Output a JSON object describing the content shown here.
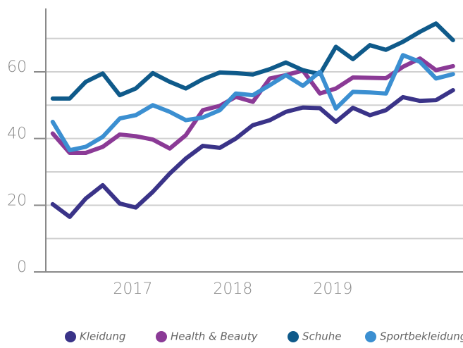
{
  "chart_data": {
    "type": "line",
    "x": [
      2016.2,
      2016.37,
      2016.53,
      2016.7,
      2016.87,
      2017.03,
      2017.2,
      2017.37,
      2017.53,
      2017.7,
      2017.87,
      2018.03,
      2018.2,
      2018.37,
      2018.53,
      2018.7,
      2018.87,
      2019.03,
      2019.2,
      2019.37,
      2019.53,
      2019.7,
      2019.87,
      2020.03,
      2020.2
    ],
    "xlim": [
      2016.11,
      2020.3
    ],
    "xticks": [
      2017,
      2018,
      2019
    ],
    "ylim": [
      0,
      79
    ],
    "yticks": [
      0,
      20,
      40,
      60
    ],
    "ygrid": [
      0,
      10,
      20,
      30,
      40,
      50,
      60,
      70
    ],
    "legend": "bottom",
    "series": [
      {
        "name": "Kleidung",
        "color": "#3a3388",
        "values": [
          20.3,
          16.5,
          22,
          26,
          20.5,
          19.3,
          24,
          29.5,
          34,
          37.8,
          37.2,
          40,
          44,
          45.5,
          48,
          49.3,
          49.1,
          45,
          49.2,
          47,
          48.5,
          52.4,
          51.3,
          51.5,
          54.5
        ]
      },
      {
        "name": "Health & Beauty",
        "color": "#8b3a96",
        "values": [
          41.5,
          35.7,
          35.7,
          37.5,
          41.2,
          40.7,
          39.7,
          37,
          41,
          48.5,
          49.8,
          52.5,
          51,
          58,
          59,
          60.4,
          53.5,
          55,
          58.3,
          58.2,
          58.1,
          61.5,
          64,
          60.5,
          61.7
        ]
      },
      {
        "name": "Schuhe",
        "color": "#0f5a8a",
        "values": [
          52,
          52,
          57,
          59.5,
          53,
          55,
          59.6,
          57,
          55,
          57.8,
          59.8,
          59.6,
          59.2,
          60.8,
          62.8,
          60.5,
          59.3,
          67.5,
          63.8,
          68,
          66.6,
          69,
          72,
          74.5,
          69.5
        ]
      },
      {
        "name": "Sportbekleidung",
        "color": "#3b8fd1",
        "values": [
          45,
          36.5,
          37.5,
          40.5,
          46,
          47,
          50,
          48,
          45.5,
          46.3,
          48.5,
          53.5,
          53,
          56,
          59,
          55.8,
          60,
          49,
          54,
          53.8,
          53.5,
          65,
          63,
          58,
          59.3
        ]
      }
    ]
  }
}
